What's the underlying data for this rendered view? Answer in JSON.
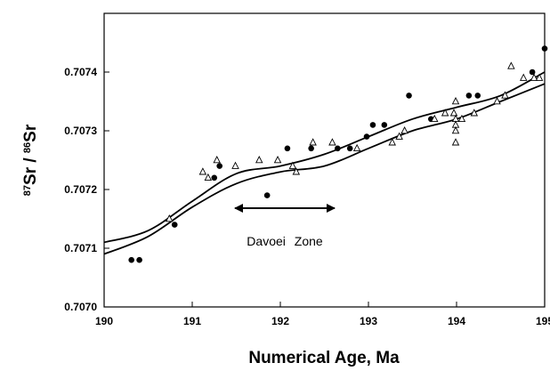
{
  "chart_data": {
    "type": "scatter",
    "xlabel": "Numerical Age, Ma",
    "ylabel": [
      "87",
      "Sr / ",
      "86",
      "Sr"
    ],
    "annotation": "Davoei Zone",
    "xlim": [
      190,
      195
    ],
    "ylim": [
      0.707,
      0.7075
    ],
    "xticks": [
      190,
      191,
      192,
      193,
      194,
      195
    ],
    "yticks": [
      {
        "value": 0.707,
        "label": "0.7070"
      },
      0.7071,
      0.7072,
      0.7073,
      0.7074
    ],
    "series": [
      {
        "marker": "none",
        "color": "#000000",
        "x": [
          190,
          190.5,
          191,
          191.5,
          192,
          192.5,
          193,
          193.5,
          194,
          194.5,
          195
        ],
        "values": [
          0.70711,
          0.70713,
          0.70718,
          0.707227,
          0.70724,
          0.70726,
          0.70729,
          0.70732,
          0.70734,
          0.70736,
          0.7074
        ]
      },
      {
        "marker": "none",
        "color": "#000000",
        "x": [
          190,
          190.5,
          191,
          191.5,
          192,
          192.5,
          193,
          193.5,
          194,
          194.5,
          195
        ],
        "values": [
          0.70709,
          0.70712,
          0.70717,
          0.70721,
          0.70723,
          0.70724,
          0.70727,
          0.7073,
          0.70732,
          0.70735,
          0.70738
        ]
      },
      {
        "marker": "circle",
        "color": "#000000",
        "x": [
          190.31,
          190.4,
          190.8,
          191.25,
          191.31,
          191.85,
          192.08,
          192.35,
          192.65,
          192.79,
          192.98,
          193.05,
          193.18,
          193.46,
          193.71,
          194.14,
          194.24,
          194.86,
          195
        ],
        "values": [
          0.70708,
          0.70708,
          0.70714,
          0.70722,
          0.70724,
          0.70719,
          0.70727,
          0.70727,
          0.70727,
          0.70727,
          0.70729,
          0.70731,
          0.70731,
          0.70736,
          0.70732,
          0.70736,
          0.70736,
          0.7074,
          0.70744
        ]
      },
      {
        "marker": "triangle",
        "color": "#000000",
        "x": [
          190.74,
          191.12,
          191.18,
          191.28,
          191.49,
          191.76,
          191.97,
          192.14,
          192.18,
          192.37,
          192.59,
          192.87,
          193.27,
          193.35,
          193.41,
          193.75,
          193.87,
          193.97,
          193.99,
          193.99,
          193.99,
          193.99,
          193.99,
          194.06,
          194.2,
          194.46,
          194.55,
          194.62,
          194.76,
          194.88,
          194.94
        ],
        "values": [
          0.70715,
          0.70723,
          0.70722,
          0.70725,
          0.70724,
          0.70725,
          0.70725,
          0.70724,
          0.70723,
          0.70728,
          0.70728,
          0.70727,
          0.70728,
          0.70729,
          0.7073,
          0.70732,
          0.70733,
          0.70733,
          0.70732,
          0.70731,
          0.7073,
          0.70728,
          0.70735,
          0.70732,
          0.70733,
          0.70735,
          0.70736,
          0.70741,
          0.70739,
          0.70739,
          0.70739
        ]
      }
    ]
  }
}
